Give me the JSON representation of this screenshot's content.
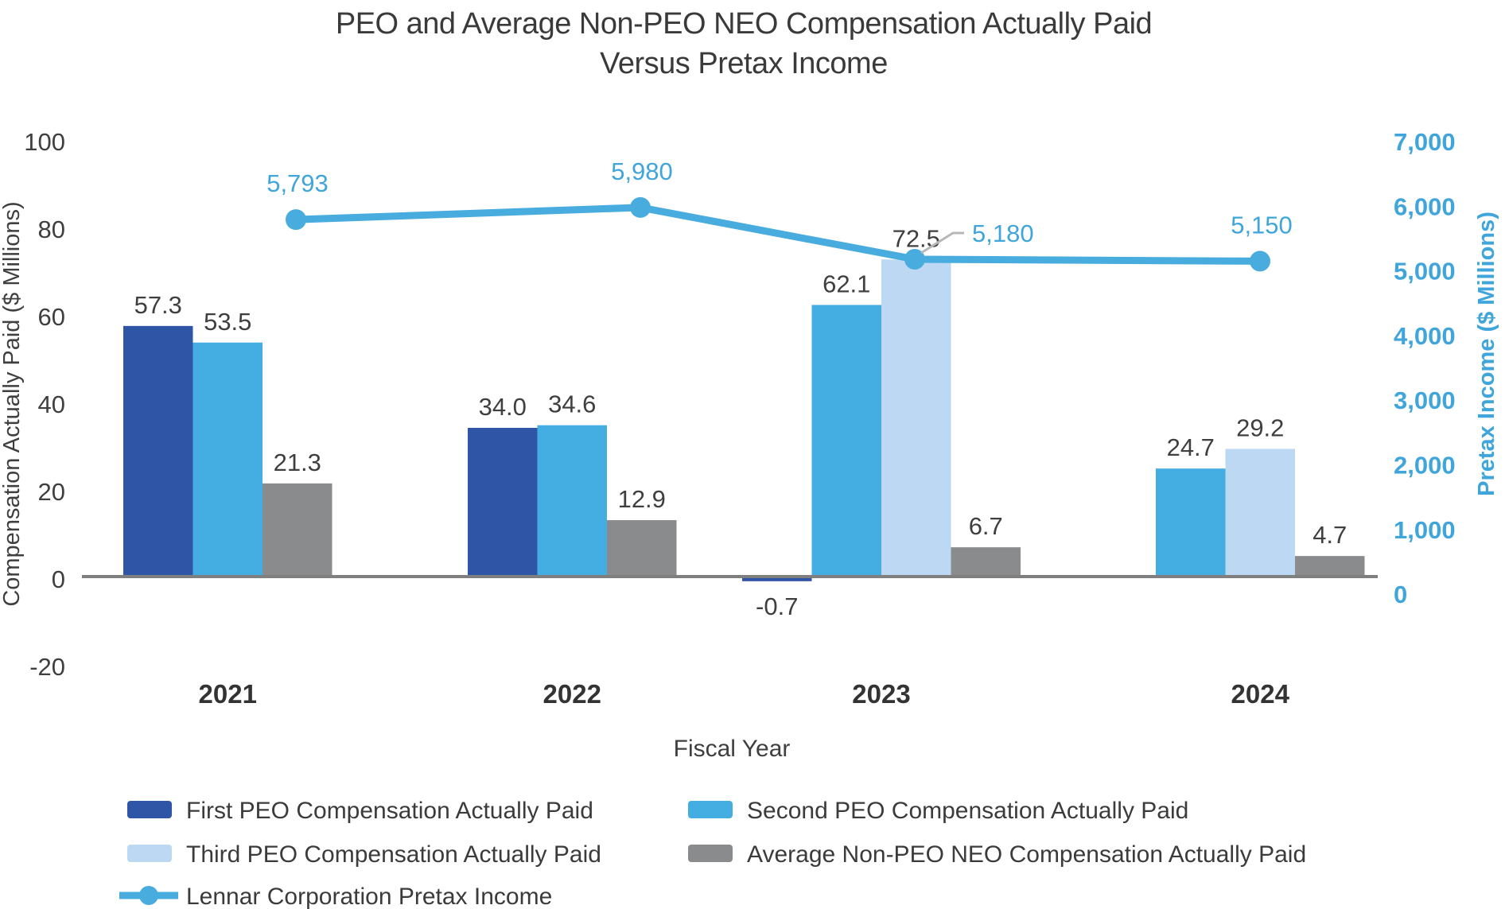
{
  "title": {
    "line1": "PEO and Average Non-PEO NEO Compensation Actually Paid",
    "line2": "Versus Pretax Income"
  },
  "chart_data": {
    "type": "combo-bar-line",
    "categories": [
      "2021",
      "2022",
      "2023",
      "2024"
    ],
    "bar_series": [
      {
        "name": "First PEO Compensation Actually Paid",
        "key": "first-peo",
        "color": "#2f56a6",
        "values": [
          57.3,
          34.0,
          -0.7,
          null
        ]
      },
      {
        "name": "Second PEO Compensation Actually Paid",
        "key": "second-peo",
        "color": "#44aee2",
        "values": [
          53.5,
          34.6,
          62.1,
          24.7
        ]
      },
      {
        "name": "Third PEO Compensation Actually Paid",
        "key": "third-peo",
        "color": "#bdd8f2",
        "values": [
          null,
          null,
          72.5,
          29.2
        ]
      },
      {
        "name": "Average Non-PEO NEO Compensation Actually Paid",
        "key": "avg-non-peo-neo",
        "color": "#8a8b8d",
        "values": [
          21.3,
          12.9,
          6.7,
          4.7
        ]
      }
    ],
    "line_series": {
      "name": "Lennar Corporation Pretax Income",
      "key": "pretax-income",
      "color": "#49acdf",
      "values": [
        5793,
        5980,
        5180,
        5150
      ]
    },
    "left_axis": {
      "label": "Compensation Actually Paid ($ Millions)",
      "ticks": [
        100,
        80,
        60,
        40,
        20,
        0,
        -20
      ],
      "range": [
        -20,
        100
      ]
    },
    "right_axis": {
      "label": "Pretax Income ($ Millions)",
      "ticks": [
        7000,
        6000,
        5000,
        4000,
        3000,
        2000,
        1000,
        0
      ],
      "range": [
        0,
        7000
      ]
    },
    "x_axis": {
      "label": "Fiscal Year"
    },
    "legend_position": "bottom",
    "grid": false
  },
  "legend": {
    "items": [
      "First PEO Compensation Actually Paid",
      "Second PEO Compensation Actually Paid",
      "Third PEO Compensation Actually Paid",
      "Average Non-PEO NEO Compensation Actually Paid",
      "Lennar Corporation Pretax Income"
    ]
  },
  "colors": {
    "first_peo": "#2f56a6",
    "second_peo": "#44aee2",
    "third_peo": "#bdd8f2",
    "avg_non_peo": "#8a8b8d",
    "pretax_line": "#49acdf",
    "right_axis_text": "#3fa5da",
    "baseline": "#7f7f7f",
    "leader_line": "#b7b7b7",
    "text": "#3f3f3f"
  }
}
